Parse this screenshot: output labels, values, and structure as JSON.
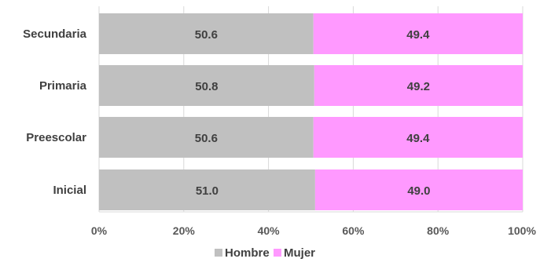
{
  "chart_data": {
    "type": "bar",
    "orientation": "horizontal",
    "stacked": "percent",
    "categories": [
      "Secundaria",
      "Primaria",
      "Preescolar",
      "Inicial"
    ],
    "series": [
      {
        "name": "Hombre",
        "values": [
          50.6,
          50.8,
          50.6,
          51.0
        ],
        "color": "#c0c0c0"
      },
      {
        "name": "Mujer",
        "values": [
          49.4,
          49.2,
          49.4,
          49.0
        ],
        "color": "#ff99ff"
      }
    ],
    "value_labels": [
      [
        "50.6",
        "50.8",
        "50.6",
        "51.0"
      ],
      [
        "49.4",
        "49.2",
        "49.4",
        "49.0"
      ]
    ],
    "x_ticks": [
      "0%",
      "20%",
      "40%",
      "60%",
      "80%",
      "100%"
    ],
    "xlim": [
      0,
      100
    ],
    "grid": "vertical",
    "legend": "bottom"
  }
}
